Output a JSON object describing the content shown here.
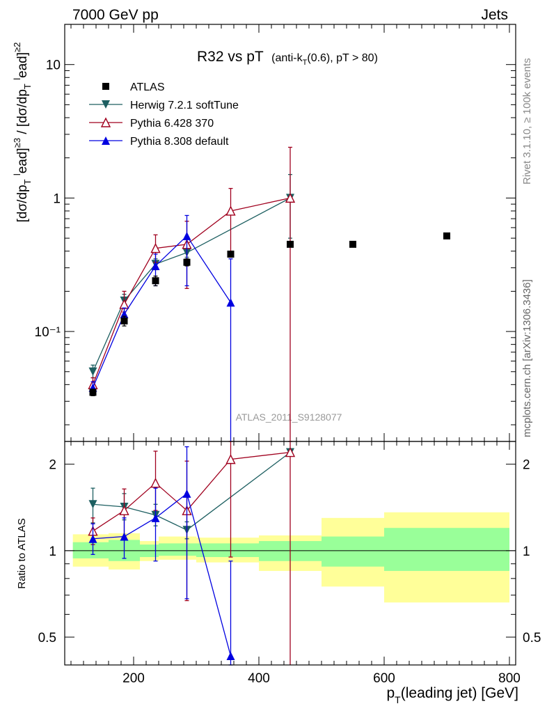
{
  "header": {
    "left": "7000 GeV pp",
    "right": "Jets"
  },
  "side_labels": {
    "rivet": "Rivet 3.1.10, ≥ 100k events",
    "mcplots": "mcplots.cern.ch [arXiv:1306.3436]"
  },
  "plot_title": {
    "main": "R32 vs pT",
    "sub_prefix": "(anti-k",
    "sub_sub": "T",
    "sub_suffix": "(0.6), pT > 80)"
  },
  "watermark": "ATLAS_2011_S9128077",
  "ratio_ylabel": "Ratio to ATLAS",
  "xlabel": {
    "main": "p",
    "sub": "T",
    "rest": "(leading jet) [GeV]"
  },
  "ylabel_top": "[dσ/dp_T^lead]^{≥3} / [dσ/dp_T^lead]^{≥2}",
  "chart_data": {
    "type": "scatter",
    "x_scale": "linear",
    "y_scale": "log",
    "xlim": [
      90,
      810
    ],
    "ylim_main": [
      0.015,
      20
    ],
    "ylim_ratio": [
      0.4,
      2.4
    ],
    "x_ticks": [
      200,
      400,
      600,
      800
    ],
    "y_ticks_main": [
      {
        "value": 0.1,
        "label": "10⁻¹"
      },
      {
        "value": 1,
        "label": "1"
      },
      {
        "value": 10,
        "label": "10"
      }
    ],
    "y_ticks_ratio": [
      {
        "value": 0.5,
        "label": "0.5"
      },
      {
        "value": 1,
        "label": "1"
      },
      {
        "value": 2,
        "label": "2"
      }
    ],
    "legend_position": "top-left",
    "series": [
      {
        "name": "ATLAS",
        "color": "#000000",
        "marker": "square",
        "points": [
          {
            "x": 135,
            "y": 0.035,
            "lo": 0.033,
            "hi": 0.037
          },
          {
            "x": 185,
            "y": 0.12,
            "lo": 0.11,
            "hi": 0.13
          },
          {
            "x": 235,
            "y": 0.24,
            "lo": 0.22,
            "hi": 0.26
          },
          {
            "x": 285,
            "y": 0.33,
            "lo": 0.31,
            "hi": 0.35
          },
          {
            "x": 355,
            "y": 0.38,
            "lo": 0.36,
            "hi": 0.4
          },
          {
            "x": 450,
            "y": 0.45,
            "lo": 0.43,
            "hi": 0.47
          },
          {
            "x": 550,
            "y": 0.45,
            "lo": 0.44,
            "hi": 0.46
          },
          {
            "x": 700,
            "y": 0.52,
            "lo": 0.51,
            "hi": 0.53
          }
        ]
      },
      {
        "name": "Herwig 7.2.1 softTune",
        "color": "#1d5f61",
        "marker": "triangle-down",
        "points": [
          {
            "x": 135,
            "y": 0.05,
            "lo": 0.045,
            "hi": 0.056
          },
          {
            "x": 185,
            "y": 0.17,
            "lo": 0.15,
            "hi": 0.19
          },
          {
            "x": 235,
            "y": 0.32,
            "lo": 0.29,
            "hi": 0.35
          },
          {
            "x": 285,
            "y": 0.39,
            "lo": 0.36,
            "hi": 0.42
          },
          {
            "x": 450,
            "y": 1.0,
            "lo": 0.5,
            "hi": 1.5
          }
        ],
        "ratio": [
          {
            "x": 135,
            "y": 1.45,
            "lo": 1.25,
            "hi": 1.65
          },
          {
            "x": 185,
            "y": 1.42,
            "lo": 1.28,
            "hi": 1.58
          },
          {
            "x": 235,
            "y": 1.33,
            "lo": 1.22,
            "hi": 1.45
          },
          {
            "x": 285,
            "y": 1.18,
            "lo": 1.1,
            "hi": 1.26
          },
          {
            "x": 450,
            "y": 2.2,
            "lo": 2.15,
            "hi": 2.25
          }
        ]
      },
      {
        "name": "Pythia 6.428 370",
        "color": "#a0001e",
        "marker": "triangle-up-open",
        "points": [
          {
            "x": 135,
            "y": 0.04,
            "lo": 0.036,
            "hi": 0.045
          },
          {
            "x": 185,
            "y": 0.16,
            "lo": 0.14,
            "hi": 0.2
          },
          {
            "x": 235,
            "y": 0.42,
            "lo": 0.33,
            "hi": 0.53
          },
          {
            "x": 285,
            "y": 0.45,
            "lo": 0.21,
            "hi": 0.67
          },
          {
            "x": 355,
            "y": 0.8,
            "lo": 0.37,
            "hi": 1.18
          },
          {
            "x": 450,
            "y": 1.0,
            "lo": 0.0001,
            "hi": 2.4
          }
        ],
        "ratio": [
          {
            "x": 135,
            "y": 1.17,
            "lo": 1.05,
            "hi": 1.3
          },
          {
            "x": 185,
            "y": 1.38,
            "lo": 1.12,
            "hi": 1.64
          },
          {
            "x": 235,
            "y": 1.72,
            "lo": 1.38,
            "hi": 2.22
          },
          {
            "x": 285,
            "y": 1.38,
            "lo": 0.67,
            "hi": 2.05
          },
          {
            "x": 355,
            "y": 2.08,
            "lo": 0.95,
            "hi": 3.1
          },
          {
            "x": 450,
            "y": 2.2,
            "lo": 0.0001,
            "hi": 5
          }
        ]
      },
      {
        "name": "Pythia 8.308 default",
        "color": "#0000e0",
        "marker": "triangle-up",
        "points": [
          {
            "x": 135,
            "y": 0.038,
            "lo": 0.034,
            "hi": 0.042
          },
          {
            "x": 185,
            "y": 0.135,
            "lo": 0.12,
            "hi": 0.15
          },
          {
            "x": 235,
            "y": 0.31,
            "lo": 0.22,
            "hi": 0.38
          },
          {
            "x": 285,
            "y": 0.52,
            "lo": 0.22,
            "hi": 0.74
          },
          {
            "x": 355,
            "y": 0.165,
            "lo": 0.0001,
            "hi": 0.35
          }
        ],
        "ratio": [
          {
            "x": 135,
            "y": 1.1,
            "lo": 0.97,
            "hi": 1.24
          },
          {
            "x": 185,
            "y": 1.12,
            "lo": 0.94,
            "hi": 1.3
          },
          {
            "x": 235,
            "y": 1.3,
            "lo": 0.92,
            "hi": 1.65
          },
          {
            "x": 285,
            "y": 1.58,
            "lo": 0.68,
            "hi": 2.3
          },
          {
            "x": 355,
            "y": 0.43,
            "lo": 0.4,
            "hi": 0.92
          }
        ]
      }
    ],
    "uncertainty_bands": [
      {
        "x0": 103,
        "x1": 160,
        "inner": [
          0.94,
          1.07
        ],
        "outer": [
          0.88,
          1.14
        ]
      },
      {
        "x0": 160,
        "x1": 210,
        "inner": [
          0.92,
          1.09
        ],
        "outer": [
          0.86,
          1.15
        ]
      },
      {
        "x0": 210,
        "x1": 240,
        "inner": [
          0.95,
          1.05
        ],
        "outer": [
          0.92,
          1.08
        ]
      },
      {
        "x0": 240,
        "x1": 300,
        "inner": [
          0.96,
          1.06
        ],
        "outer": [
          0.93,
          1.12
        ]
      },
      {
        "x0": 300,
        "x1": 400,
        "inner": [
          0.95,
          1.06
        ],
        "outer": [
          0.91,
          1.11
        ]
      },
      {
        "x0": 400,
        "x1": 500,
        "inner": [
          0.92,
          1.08
        ],
        "outer": [
          0.85,
          1.13
        ]
      },
      {
        "x0": 500,
        "x1": 600,
        "inner": [
          0.88,
          1.12
        ],
        "outer": [
          0.75,
          1.3
        ]
      },
      {
        "x0": 600,
        "x1": 800,
        "inner": [
          0.85,
          1.2
        ],
        "outer": [
          0.66,
          1.36
        ]
      }
    ],
    "band_colors": {
      "inner": "#99ff99",
      "outer": "#ffff99"
    }
  }
}
